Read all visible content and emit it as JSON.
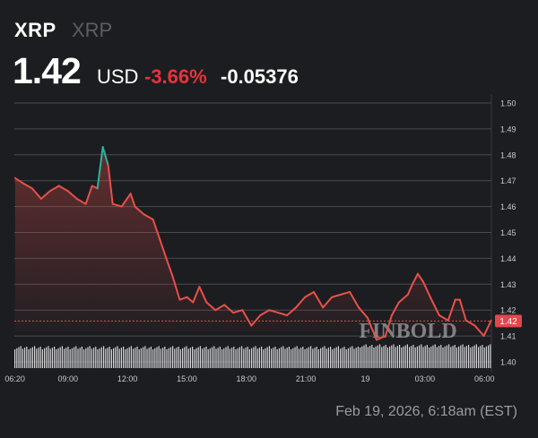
{
  "header": {
    "symbol": "XRP",
    "name": "XRP",
    "price": "1.42",
    "currency": "USD",
    "change_pct": "-3.66%",
    "change_abs": "-0.05376"
  },
  "footer": {
    "timestamp": "Feb 19, 2026, 6:18am (EST)"
  },
  "colors": {
    "down": "#e8504a",
    "up": "#2bb39a",
    "pct": "#e8323c",
    "badge": "#e0484a"
  },
  "chart_data": {
    "type": "line",
    "title": "XRP / USD",
    "xlabel": "",
    "ylabel": "",
    "ylim": [
      1.4,
      1.5
    ],
    "previous_close": 1.47376,
    "last_price_label": "1.42",
    "last_price": 1.4158,
    "yticks": [
      "1.50",
      "1.49",
      "1.48",
      "1.47",
      "1.46",
      "1.45",
      "1.44",
      "1.43",
      "1.42",
      "1.41",
      "1.40"
    ],
    "ytick_values": [
      1.5,
      1.49,
      1.48,
      1.47,
      1.46,
      1.45,
      1.44,
      1.43,
      1.42,
      1.41,
      1.4
    ],
    "xticks": [
      {
        "t": 0.33,
        "label": "06:20"
      },
      {
        "t": 3,
        "label": "09:00"
      },
      {
        "t": 6,
        "label": "12:00"
      },
      {
        "t": 9,
        "label": "15:00"
      },
      {
        "t": 12,
        "label": "18:00"
      },
      {
        "t": 15,
        "label": "21:00"
      },
      {
        "t": 18,
        "label": "19"
      },
      {
        "t": 21,
        "label": "03:00"
      },
      {
        "t": 24,
        "label": "06:00"
      }
    ],
    "xlim": [
      0.3,
      24.35
    ],
    "watermark": "FINBOLD",
    "series": [
      {
        "name": "XRP",
        "points": [
          [
            0.34,
            1.471
          ],
          [
            0.74,
            1.469
          ],
          [
            1.2,
            1.467
          ],
          [
            1.65,
            1.463
          ],
          [
            2.1,
            1.466
          ],
          [
            2.55,
            1.468
          ],
          [
            3,
            1.466
          ],
          [
            3.45,
            1.463
          ],
          [
            3.9,
            1.461
          ],
          [
            4.22,
            1.468
          ],
          [
            4.49,
            1.467
          ],
          [
            4.76,
            1.483
          ],
          [
            5.03,
            1.476
          ],
          [
            5.26,
            1.461
          ],
          [
            5.71,
            1.46
          ],
          [
            6.16,
            1.465
          ],
          [
            6.38,
            1.46
          ],
          [
            6.83,
            1.457
          ],
          [
            7.29,
            1.455
          ],
          [
            7.65,
            1.447
          ],
          [
            7.96,
            1.44
          ],
          [
            8.28,
            1.433
          ],
          [
            8.64,
            1.424
          ],
          [
            9,
            1.425
          ],
          [
            9.31,
            1.423
          ],
          [
            9.63,
            1.429
          ],
          [
            9.99,
            1.423
          ],
          [
            10.44,
            1.42
          ],
          [
            10.89,
            1.422
          ],
          [
            11.34,
            1.419
          ],
          [
            11.8,
            1.42
          ],
          [
            12.25,
            1.414
          ],
          [
            12.7,
            1.418
          ],
          [
            13.15,
            1.42
          ],
          [
            13.6,
            1.419
          ],
          [
            14.05,
            1.418
          ],
          [
            14.5,
            1.421
          ],
          [
            14.95,
            1.425
          ],
          [
            15.4,
            1.427
          ],
          [
            15.86,
            1.421
          ],
          [
            16.31,
            1.425
          ],
          [
            16.76,
            1.426
          ],
          [
            17.21,
            1.427
          ],
          [
            17.66,
            1.421
          ],
          [
            18.11,
            1.417
          ],
          [
            18.56,
            1.4085
          ],
          [
            19.01,
            1.41
          ],
          [
            19.33,
            1.418
          ],
          [
            19.69,
            1.423
          ],
          [
            20.14,
            1.426
          ],
          [
            20.37,
            1.43
          ],
          [
            20.64,
            1.434
          ],
          [
            20.91,
            1.431
          ],
          [
            21.27,
            1.425
          ],
          [
            21.72,
            1.418
          ],
          [
            22.17,
            1.416
          ],
          [
            22.53,
            1.424
          ],
          [
            22.76,
            1.424
          ],
          [
            23.07,
            1.416
          ],
          [
            23.52,
            1.414
          ],
          [
            23.97,
            1.41
          ],
          [
            24.34,
            1.416
          ]
        ]
      }
    ]
  }
}
